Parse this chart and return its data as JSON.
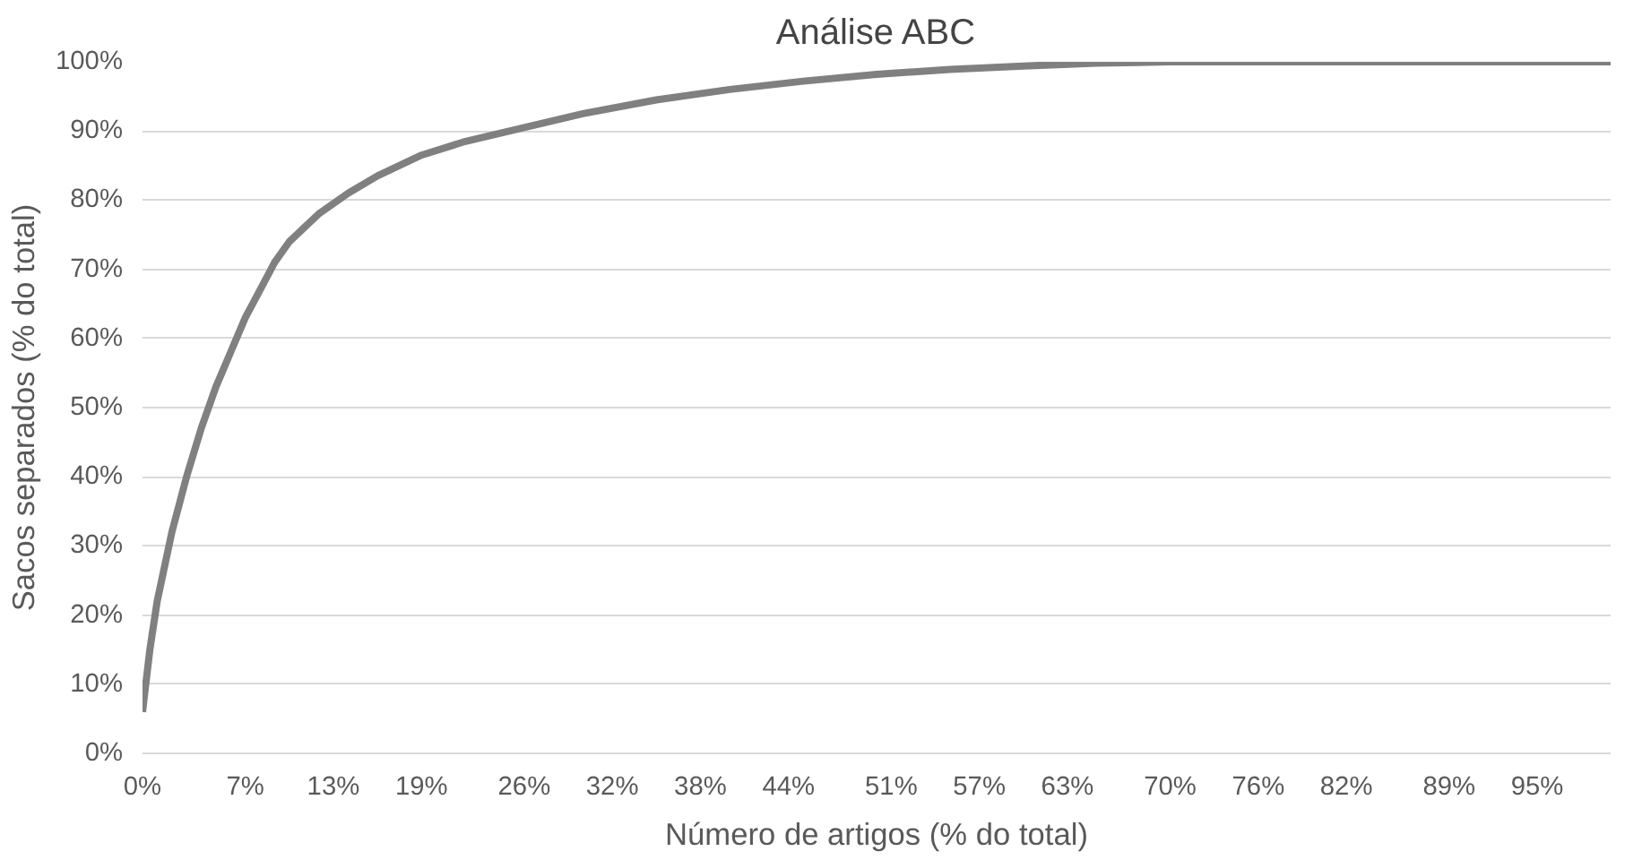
{
  "chart_data": {
    "type": "line",
    "title": "Análise ABC",
    "xlabel": "Número de artigos (% do total)",
    "ylabel": "Sacos separados (% do total)",
    "x": [
      0,
      0.5,
      1,
      2,
      3,
      4,
      5,
      6,
      7,
      8,
      9,
      10,
      11,
      12,
      14,
      16,
      19,
      22,
      26,
      30,
      35,
      40,
      45,
      50,
      55,
      60,
      65,
      70,
      80,
      90,
      100
    ],
    "series": [
      {
        "color": "#808080",
        "values": [
          6,
          15,
          22,
          32,
          40,
          47,
          53,
          58,
          63,
          67,
          71,
          74,
          76,
          78,
          81,
          83.5,
          86.5,
          88.5,
          90.5,
          92.5,
          94.5,
          96,
          97.2,
          98.2,
          98.9,
          99.4,
          99.8,
          100,
          100,
          100,
          100
        ]
      }
    ],
    "xlim": [
      0,
      100
    ],
    "xticks": [
      {
        "value": 0,
        "label": "0%"
      },
      {
        "value": 7,
        "label": "7%"
      },
      {
        "value": 13,
        "label": "13%"
      },
      {
        "value": 19,
        "label": "19%"
      },
      {
        "value": 26,
        "label": "26%"
      },
      {
        "value": 32,
        "label": "32%"
      },
      {
        "value": 38,
        "label": "38%"
      },
      {
        "value": 44,
        "label": "44%"
      },
      {
        "value": 51,
        "label": "51%"
      },
      {
        "value": 57,
        "label": "57%"
      },
      {
        "value": 63,
        "label": "63%"
      },
      {
        "value": 70,
        "label": "70%"
      },
      {
        "value": 76,
        "label": "76%"
      },
      {
        "value": 82,
        "label": "82%"
      },
      {
        "value": 89,
        "label": "89%"
      },
      {
        "value": 95,
        "label": "95%"
      }
    ],
    "ylim": [
      0,
      100
    ],
    "yticks": [
      {
        "value": 0,
        "label": "0%"
      },
      {
        "value": 10,
        "label": "10%"
      },
      {
        "value": 20,
        "label": "20%"
      },
      {
        "value": 30,
        "label": "30%"
      },
      {
        "value": 40,
        "label": "40%"
      },
      {
        "value": 50,
        "label": "50%"
      },
      {
        "value": 60,
        "label": "60%"
      },
      {
        "value": 70,
        "label": "70%"
      },
      {
        "value": 80,
        "label": "80%"
      },
      {
        "value": 90,
        "label": "90%"
      },
      {
        "value": 100,
        "label": "100%"
      }
    ],
    "grid": "y",
    "marker": "none",
    "line_style": "solid"
  }
}
